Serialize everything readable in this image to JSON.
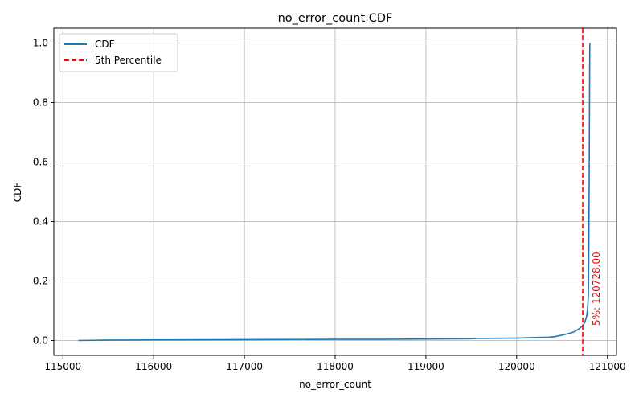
{
  "chart_data": {
    "type": "line",
    "title": "no_error_count CDF",
    "xlabel": "no_error_count",
    "ylabel": "CDF",
    "xlim": [
      114900,
      121100
    ],
    "ylim": [
      -0.05,
      1.05
    ],
    "x_ticks": [
      115000,
      116000,
      117000,
      118000,
      119000,
      120000,
      121000
    ],
    "x_tick_labels": [
      "115000",
      "116000",
      "117000",
      "118000",
      "119000",
      "120000",
      "121000"
    ],
    "y_ticks": [
      0.0,
      0.2,
      0.4,
      0.6,
      0.8,
      1.0
    ],
    "y_tick_labels": [
      "0.0",
      "0.2",
      "0.4",
      "0.6",
      "0.8",
      "1.0"
    ],
    "grid": true,
    "legend_position": "top-left",
    "series": [
      {
        "name": "CDF",
        "color": "#1f77b4",
        "style": "solid",
        "x": [
          115170,
          115400,
          116000,
          117000,
          118000,
          118500,
          119000,
          119500,
          119550,
          120000,
          120200,
          120350,
          120420,
          120500,
          120580,
          120640,
          120690,
          120710,
          120728,
          120750,
          120770,
          120780,
          120790,
          120795,
          120800,
          120804,
          120806
        ],
        "y": [
          0.0,
          0.001,
          0.002,
          0.003,
          0.004,
          0.004,
          0.005,
          0.006,
          0.007,
          0.008,
          0.01,
          0.011,
          0.013,
          0.018,
          0.024,
          0.03,
          0.04,
          0.045,
          0.05,
          0.06,
          0.08,
          0.1,
          0.15,
          0.3,
          0.6,
          0.9,
          1.0
        ]
      }
    ],
    "reference_line": {
      "name": "5th Percentile",
      "color": "#ff0000",
      "style": "dashed",
      "x": 120728
    },
    "annotation": {
      "text": "5%: 120728.00",
      "color": "#ff0000",
      "x": 120728,
      "y": 0.05
    }
  }
}
